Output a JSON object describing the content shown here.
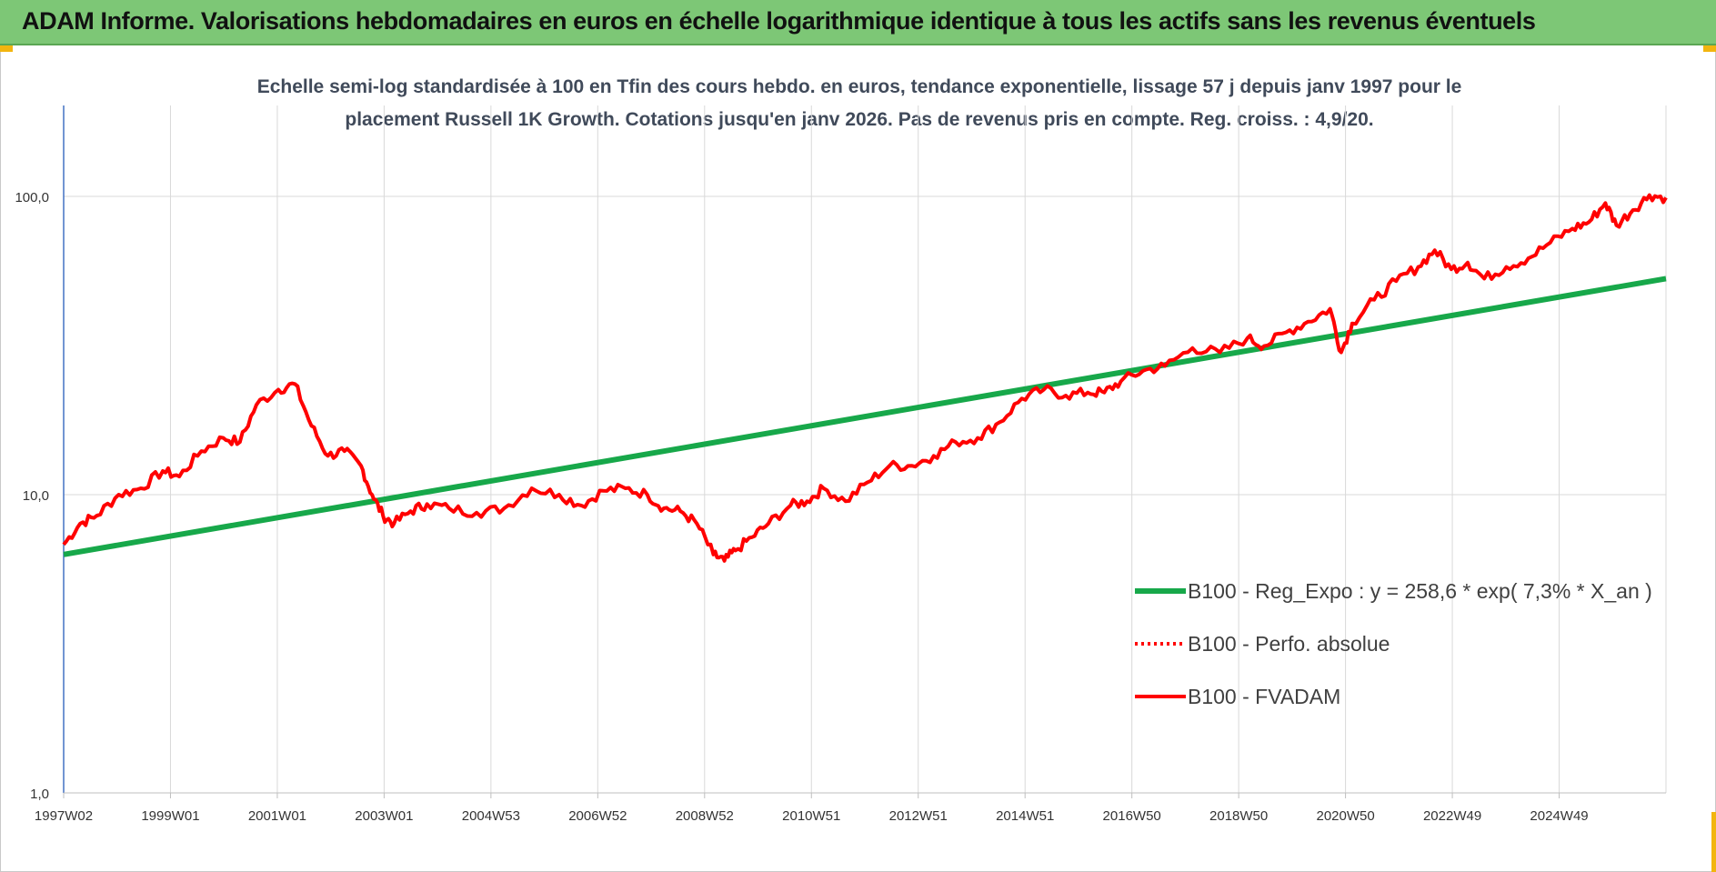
{
  "banner": {
    "title": "ADAM Informe. Valorisations hebdomadaires en euros en échelle logarithmique identique à tous les actifs sans les revenus éventuels"
  },
  "colors": {
    "banner": "#7dc776",
    "trend": "#17a84a",
    "series": "#ff0000",
    "accent": "#f2b50f",
    "axis": "#4472c4",
    "grid": "#d9d9d9"
  },
  "chart_data": {
    "type": "line",
    "title_line1": "Echelle semi-log standardisée à 100 en Tfin des cours hebdo. en euros, tendance exponentielle, lissage 57 j depuis janv 1997 pour le",
    "title_line2": "placement Russell 1K Growth. Cotations jusqu'en janv 2026. Pas de revenus pris en compte. Reg. croiss. : 4,9/20.",
    "yscale": "log",
    "ylim": [
      1,
      100
    ],
    "yticks": [
      "1,0",
      "10,0",
      "100,0"
    ],
    "xlim": [
      1997.0,
      2026.1
    ],
    "xticks": [
      "1997W02",
      "1999W01",
      "2001W01",
      "2003W01",
      "2004W53",
      "2006W52",
      "2008W52",
      "2010W51",
      "2012W51",
      "2014W51",
      "2016W50",
      "2018W50",
      "2020W50",
      "2022W49",
      "2024W49"
    ],
    "grid": true,
    "legend_position": "bottom-right",
    "series": [
      {
        "name": "B100 - Reg_Expo : y = 258,6 * exp( 7,3% *  X_an )",
        "style": "solid-green",
        "x": [
          1997.0,
          2026.1
        ],
        "y": [
          6.3,
          53.0
        ]
      },
      {
        "name": "B100 - Perfo. absolue",
        "style": "dotted-red",
        "x": [],
        "y": []
      },
      {
        "name": "B100 - FVADAM",
        "style": "solid-red",
        "x": [
          1997.0,
          1997.3,
          1997.6,
          1998.0,
          1998.4,
          1998.8,
          1999.1,
          1999.5,
          1999.9,
          2000.2,
          2000.5,
          2000.9,
          2001.2,
          2001.5,
          2001.8,
          2002.1,
          2002.4,
          2002.6,
          2002.8,
          2003.0,
          2003.3,
          2003.6,
          2004.0,
          2004.5,
          2005.0,
          2005.5,
          2006.0,
          2006.4,
          2006.8,
          2007.2,
          2007.6,
          2007.9,
          2008.2,
          2008.5,
          2008.8,
          2009.0,
          2009.2,
          2009.5,
          2009.8,
          2010.2,
          2010.5,
          2010.8,
          2011.2,
          2011.6,
          2012.0,
          2012.4,
          2012.8,
          2013.2,
          2013.6,
          2014.0,
          2014.4,
          2014.8,
          2015.2,
          2015.6,
          2015.9,
          2016.2,
          2016.6,
          2017.0,
          2017.5,
          2018.0,
          2018.5,
          2018.8,
          2019.2,
          2019.6,
          2020.0,
          2020.2,
          2020.4,
          2020.8,
          2021.2,
          2021.6,
          2021.9,
          2022.2,
          2022.5,
          2022.8,
          2023.2,
          2023.6,
          2024.0,
          2024.4,
          2024.7,
          2025.0,
          2025.2,
          2025.5,
          2025.8,
          2026.1
        ],
        "y": [
          6.8,
          8.0,
          8.5,
          10.0,
          10.5,
          12.0,
          11.5,
          14.0,
          15.5,
          15.0,
          20.0,
          22.5,
          23.5,
          17.0,
          13.5,
          14.0,
          12.5,
          10.0,
          8.5,
          8.0,
          8.8,
          9.3,
          9.0,
          8.7,
          9.0,
          10.5,
          10.0,
          9.2,
          10.3,
          10.5,
          10.0,
          9.0,
          8.8,
          8.0,
          6.3,
          6.0,
          6.5,
          7.2,
          8.0,
          9.2,
          9.5,
          10.5,
          9.5,
          11.0,
          12.5,
          12.5,
          13.5,
          15.0,
          15.5,
          17.5,
          21.0,
          22.5,
          21.5,
          22.0,
          22.0,
          24.0,
          26.0,
          27.0,
          31.0,
          30.0,
          33.5,
          31.5,
          35.0,
          38.0,
          42.0,
          30.0,
          37.5,
          45.0,
          52.0,
          58.0,
          66.0,
          57.0,
          60.0,
          53.0,
          58.0,
          62.0,
          70.0,
          78.0,
          82.0,
          95.0,
          80.0,
          90.0,
          101.0,
          99.0
        ]
      }
    ]
  }
}
